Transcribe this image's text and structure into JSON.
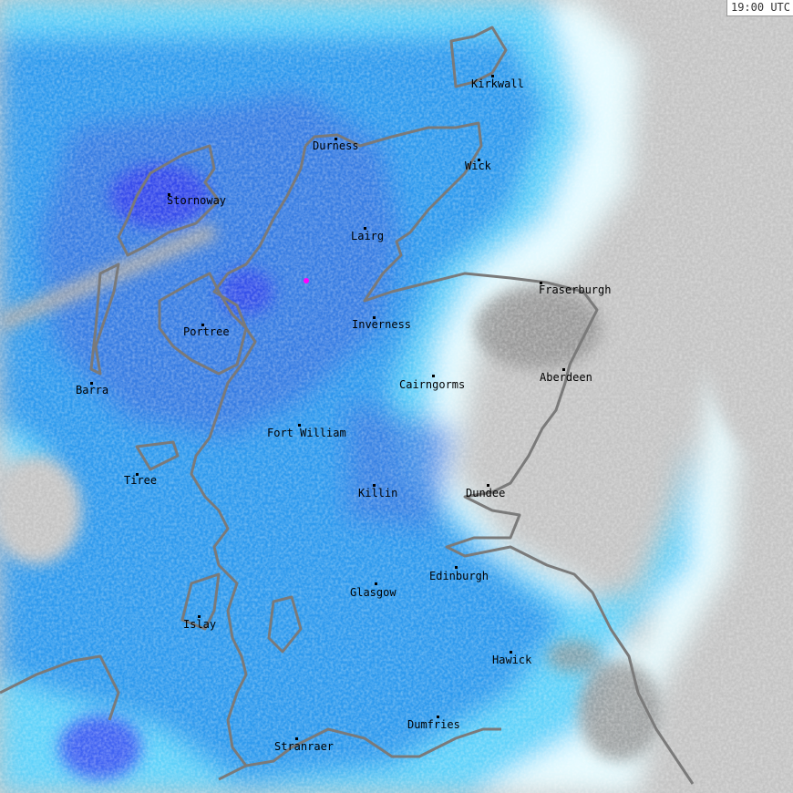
{
  "timestamp": "19:00 UTC",
  "places": [
    "Kirkwall",
    "Durness",
    "Wick",
    "Stornoway",
    "Lairg",
    "Fraserburgh",
    "Inverness",
    "Portree",
    "Aberdeen",
    "Barra",
    "Cairngorms",
    "Fort William",
    "Tiree",
    "Dundee",
    "Killin",
    "Edinburgh",
    "Glasgow",
    "Islay",
    "Hawick",
    "Dumfries",
    "Stranraer"
  ],
  "colors": {
    "no_data": "#c4c4c4",
    "land_dry": "#909090",
    "very_light": "#e6fbff",
    "light": "#5ed2fa",
    "moderate": "#2f9aee",
    "heavy": "#3a78e0",
    "very_heavy": "#3434f0",
    "extreme": "#ff00ff",
    "coastline": "#7a7a7a"
  }
}
